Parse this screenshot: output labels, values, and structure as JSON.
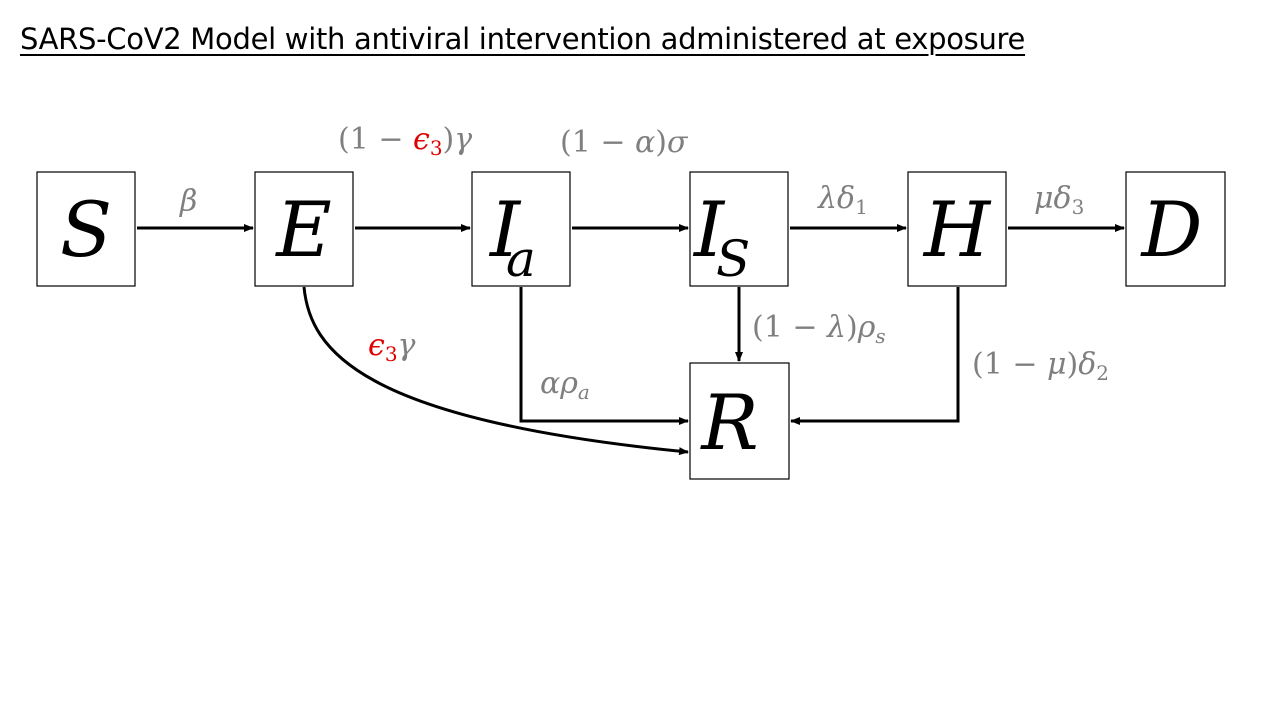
{
  "title": "SARS-CoV2 Model with antiviral intervention administered at exposure",
  "colors": {
    "rate_text": "#7f7f7f",
    "highlight": "#e00000",
    "stroke": "#000000"
  },
  "nodes": {
    "S": {
      "label": "S",
      "sub": ""
    },
    "E": {
      "label": "E",
      "sub": ""
    },
    "Ia": {
      "label": "I",
      "sub": "a"
    },
    "Is": {
      "label": "I",
      "sub": "S"
    },
    "H": {
      "label": "H",
      "sub": ""
    },
    "D": {
      "label": "D",
      "sub": ""
    },
    "R": {
      "label": "R",
      "sub": ""
    }
  },
  "rates": {
    "beta": {
      "sym": "β"
    },
    "e_to_ia": {
      "open": "(1 − ",
      "eps": "ϵ",
      "eps_sub": "3",
      "close": ")",
      "gamma": "γ"
    },
    "ia_to_is": {
      "text": "(1 − ",
      "alpha": "α",
      "close": ")",
      "sigma": "σ"
    },
    "is_to_h": {
      "lambda": "λ",
      "delta": "δ",
      "sub": "1"
    },
    "h_to_d": {
      "mu": "μ",
      "delta": "δ",
      "sub": "3"
    },
    "e_to_r": {
      "eps": "ϵ",
      "eps_sub": "3",
      "gamma": "γ"
    },
    "ia_to_r": {
      "alpha": "α",
      "rho": "ρ",
      "sub": "a"
    },
    "is_to_r": {
      "open": "(1 − ",
      "lambda": "λ",
      "close": ")",
      "rho": "ρ",
      "sub": "s"
    },
    "h_to_r": {
      "open": "(1 − ",
      "mu": "μ",
      "close": ")",
      "delta": "δ",
      "sub": "2"
    }
  }
}
